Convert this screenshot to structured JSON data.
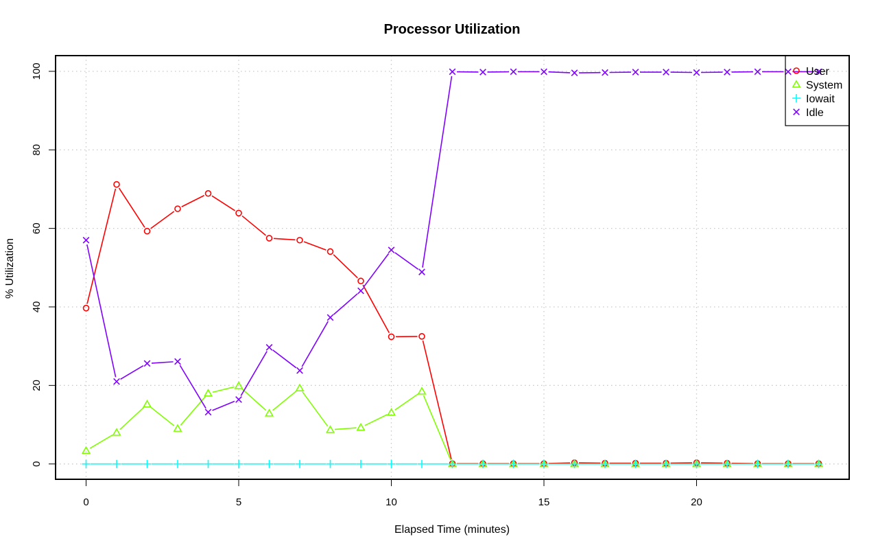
{
  "chart_data": {
    "type": "line",
    "title": "Processor Utilization",
    "xlabel": "Elapsed Time (minutes)",
    "ylabel": "% Utilization",
    "xlim": [
      -1,
      25
    ],
    "ylim": [
      -3.9,
      104
    ],
    "x_ticks": [
      "0",
      "5",
      "10",
      "15",
      "20"
    ],
    "y_ticks": [
      "0",
      "20",
      "40",
      "60",
      "80",
      "100"
    ],
    "grid": true,
    "legend_position": "top-right",
    "x": [
      0,
      1,
      2,
      3,
      4,
      5,
      6,
      7,
      8,
      9,
      10,
      11,
      12,
      13,
      14,
      15,
      16,
      17,
      18,
      19,
      20,
      21,
      22,
      23,
      24
    ],
    "series": [
      {
        "name": "User",
        "color": "#ff0000",
        "marker": "circle",
        "values": [
          39.7,
          71.2,
          59.3,
          65.0,
          68.9,
          63.9,
          57.5,
          57.0,
          54.1,
          46.6,
          32.4,
          32.5,
          0.1,
          0.1,
          0.1,
          0.1,
          0.3,
          0.2,
          0.2,
          0.2,
          0.3,
          0.2,
          0.1,
          0.1,
          0.1
        ]
      },
      {
        "name": "System",
        "color": "#80ff00",
        "marker": "triangle",
        "values": [
          3.4,
          8.0,
          15.2,
          9.0,
          18.0,
          19.9,
          12.9,
          19.3,
          8.7,
          9.3,
          13.1,
          18.5,
          0.0,
          0.0,
          0.0,
          0.0,
          0.0,
          0.0,
          0.0,
          0.0,
          0.0,
          0.0,
          0.0,
          0.0,
          0.0
        ]
      },
      {
        "name": "Iowait",
        "color": "#00ffff",
        "marker": "plus",
        "values": [
          0.0,
          0.0,
          0.0,
          0.0,
          0.0,
          0.0,
          0.0,
          0.0,
          0.0,
          0.0,
          0.0,
          0.0,
          0.0,
          0.0,
          0.0,
          0.0,
          0.0,
          0.0,
          0.0,
          0.0,
          0.0,
          0.0,
          0.0,
          0.0,
          0.0
        ]
      },
      {
        "name": "Idle",
        "color": "#8000ff",
        "marker": "cross",
        "values": [
          57.0,
          21.0,
          25.6,
          26.1,
          13.2,
          16.4,
          29.7,
          23.8,
          37.3,
          44.1,
          54.5,
          48.9,
          99.9,
          99.8,
          99.9,
          99.9,
          99.6,
          99.7,
          99.8,
          99.8,
          99.7,
          99.8,
          99.9,
          99.9,
          99.9
        ]
      }
    ]
  }
}
